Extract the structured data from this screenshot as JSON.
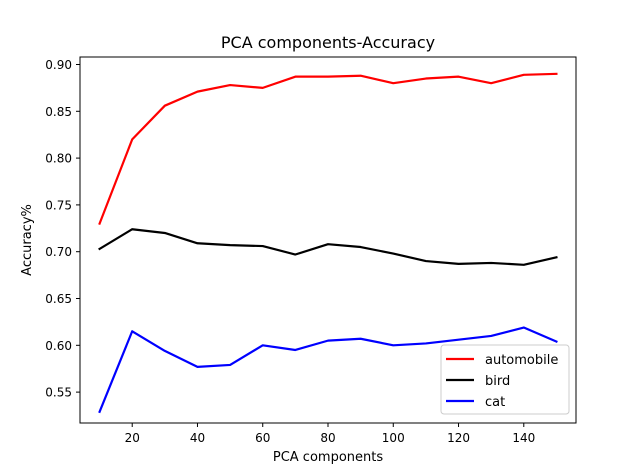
{
  "chart_data": {
    "type": "line",
    "title": "PCA components-Accuracy",
    "xlabel": "PCA components",
    "ylabel": "Accuracy%",
    "x": [
      10,
      20,
      30,
      40,
      50,
      60,
      70,
      80,
      90,
      100,
      110,
      120,
      130,
      140,
      150
    ],
    "xlim": [
      4,
      156
    ],
    "ylim": [
      0.517,
      0.908
    ],
    "xticks": [
      20,
      40,
      60,
      80,
      100,
      120,
      140
    ],
    "xtick_labels": [
      "20",
      "40",
      "60",
      "80",
      "100",
      "120",
      "140"
    ],
    "yticks": [
      0.55,
      0.6,
      0.65,
      0.7,
      0.75,
      0.8,
      0.85,
      0.9
    ],
    "ytick_labels": [
      "0.55",
      "0.60",
      "0.65",
      "0.70",
      "0.75",
      "0.80",
      "0.85",
      "0.90"
    ],
    "grid": false,
    "legend_position": "lower-right",
    "series": [
      {
        "name": "automobile",
        "color": "#ff0000",
        "values": [
          0.73,
          0.82,
          0.856,
          0.871,
          0.878,
          0.875,
          0.887,
          0.887,
          0.888,
          0.88,
          0.885,
          0.887,
          0.88,
          0.889,
          0.89
        ]
      },
      {
        "name": "bird",
        "color": "#000000",
        "values": [
          0.703,
          0.724,
          0.72,
          0.709,
          0.707,
          0.706,
          0.697,
          0.708,
          0.705,
          0.698,
          0.69,
          0.687,
          0.688,
          0.686,
          0.694
        ]
      },
      {
        "name": "cat",
        "color": "#0000ff",
        "values": [
          0.529,
          0.615,
          0.594,
          0.577,
          0.579,
          0.6,
          0.595,
          0.605,
          0.607,
          0.6,
          0.602,
          0.606,
          0.61,
          0.619,
          0.604
        ]
      }
    ]
  }
}
